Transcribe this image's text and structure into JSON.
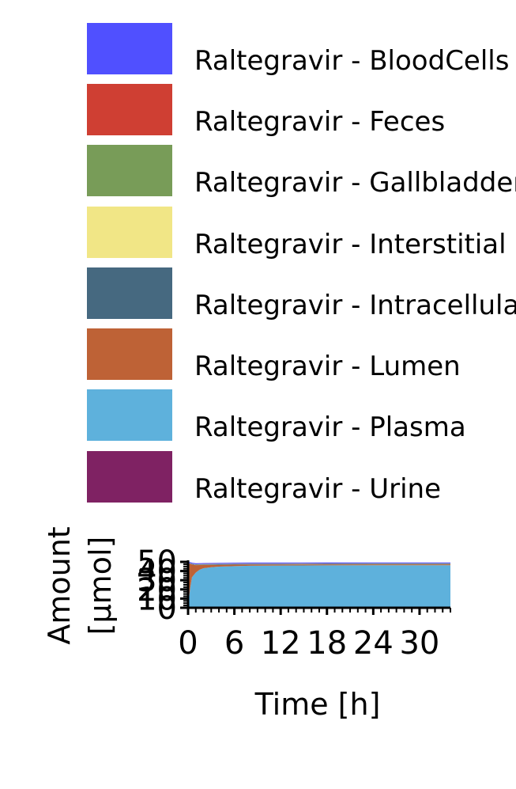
{
  "chart_data": {
    "type": "area",
    "stacked": true,
    "xlabel": "Time [h]",
    "ylabel_lines": [
      "Amount",
      "[µmol]"
    ],
    "xlim": [
      0,
      34
    ],
    "ylim": [
      0,
      50
    ],
    "x_ticks": [
      "0",
      "6",
      "12",
      "18",
      "24",
      "30"
    ],
    "x_tick_values": [
      0,
      6,
      12,
      18,
      24,
      30
    ],
    "y_ticks": [
      "0",
      "10",
      "20",
      "30",
      "40",
      "50"
    ],
    "y_tick_values": [
      0,
      10,
      20,
      30,
      40,
      50
    ],
    "legend_position": "top",
    "x": [
      0,
      0.25,
      0.5,
      1,
      1.5,
      2,
      3,
      4,
      6,
      8,
      12,
      18,
      24,
      30,
      34
    ],
    "series": [
      {
        "name": "Raltegravir - Urine",
        "color": "#7f2263",
        "values": [
          0,
          0.1,
          0.2,
          0.4,
          0.5,
          0.6,
          0.7,
          0.8,
          0.9,
          1.0,
          1.0,
          1.0,
          1.0,
          1.0,
          1.0
        ]
      },
      {
        "name": "Raltegravir - Plasma",
        "color": "#5eb1dc",
        "values": [
          0,
          20,
          33,
          38,
          41,
          42.5,
          43.5,
          44,
          44.5,
          44.8,
          45,
          45.2,
          45.3,
          45.3,
          45.3
        ]
      },
      {
        "name": "Raltegravir - Lumen",
        "color": "#be6236",
        "values": [
          48,
          28,
          14,
          8,
          5,
          3.5,
          2.5,
          2,
          1.6,
          1.3,
          1.1,
          1.0,
          1.0,
          1.0,
          1.0
        ]
      },
      {
        "name": "Raltegravir - Intracellular",
        "color": "#466980",
        "values": [
          0,
          0.3,
          0.5,
          0.6,
          0.6,
          0.6,
          0.6,
          0.6,
          0.6,
          0.6,
          0.6,
          0.6,
          0.6,
          0.6,
          0.6
        ]
      },
      {
        "name": "Raltegravir - Interstitial",
        "color": "#f1e686",
        "values": [
          0,
          0.2,
          0.3,
          0.3,
          0.3,
          0.3,
          0.3,
          0.3,
          0.3,
          0.3,
          0.3,
          0.3,
          0.3,
          0.3,
          0.3
        ]
      },
      {
        "name": "Raltegravir - Gallbladder",
        "color": "#789c58",
        "values": [
          0,
          0,
          0.1,
          0.1,
          0.1,
          0.1,
          0.1,
          0.1,
          0.1,
          0.1,
          0.1,
          0.1,
          0.1,
          0.1,
          0.1
        ]
      },
      {
        "name": "Raltegravir - Feces",
        "color": "#cf3f33",
        "values": [
          0,
          0,
          0,
          0.05,
          0.1,
          0.1,
          0.1,
          0.1,
          0.1,
          0.1,
          0.1,
          0.1,
          0.1,
          0.1,
          0.1
        ]
      },
      {
        "name": "Raltegravir - BloodCells",
        "color": "#5050ff",
        "values": [
          2,
          1.2,
          1.0,
          1.0,
          1.0,
          1.0,
          1.0,
          1.0,
          1.0,
          1.0,
          1.0,
          1.0,
          1.0,
          1.0,
          1.0
        ]
      }
    ],
    "legend": [
      {
        "label": "Raltegravir - BloodCells",
        "color": "#5050ff"
      },
      {
        "label": "Raltegravir - Feces",
        "color": "#cf3f33"
      },
      {
        "label": "Raltegravir - Gallbladder",
        "color": "#789c58"
      },
      {
        "label": "Raltegravir - Interstitial",
        "color": "#f1e686"
      },
      {
        "label": "Raltegravir - Intracellular",
        "color": "#466980"
      },
      {
        "label": "Raltegravir - Lumen",
        "color": "#be6236"
      },
      {
        "label": "Raltegravir - Plasma",
        "color": "#5eb1dc"
      },
      {
        "label": "Raltegravir - Urine",
        "color": "#7f2263"
      }
    ]
  }
}
